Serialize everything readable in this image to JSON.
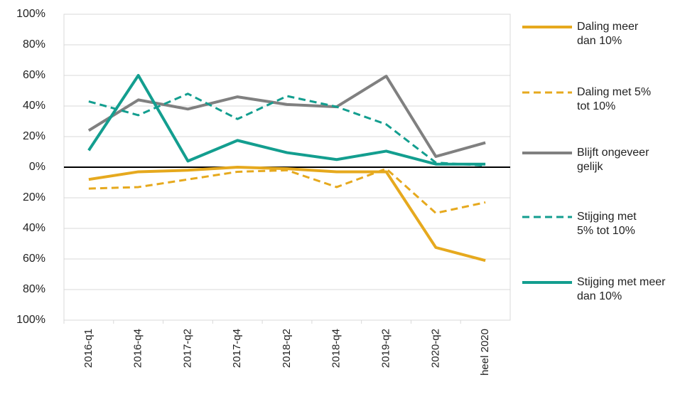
{
  "chart_data": {
    "type": "line",
    "categories": [
      "2016-q1",
      "2016-q4",
      "2017-q2",
      "2017-q4",
      "2018-q2",
      "2018-q4",
      "2019-q2",
      "2020-q2",
      "heel 2020"
    ],
    "ylim": [
      -100,
      100
    ],
    "yticks": [
      {
        "value": -100,
        "label": "100%"
      },
      {
        "value": -80,
        "label": "80%"
      },
      {
        "value": -60,
        "label": "60%"
      },
      {
        "value": -40,
        "label": "40%"
      },
      {
        "value": -20,
        "label": "20%"
      },
      {
        "value": 0,
        "label": "0%"
      },
      {
        "value": 20,
        "label": "20%"
      },
      {
        "value": 40,
        "label": "40%"
      },
      {
        "value": 60,
        "label": "60%"
      },
      {
        "value": 80,
        "label": "80%"
      },
      {
        "value": 100,
        "label": "100%"
      }
    ],
    "grid": true,
    "legend": "right",
    "series": [
      {
        "name": "Daling meer dan 10%",
        "color": "#e6a91e",
        "dash": "solid",
        "values": [
          -8,
          -3,
          -2,
          0,
          -1,
          -3,
          -3,
          -52.5,
          -61
        ]
      },
      {
        "name": "Daling met 5% tot 10%",
        "color": "#e6a91e",
        "dash": "dashed",
        "values": [
          -14,
          -13,
          -8,
          -3,
          -2,
          -13,
          -1,
          -30,
          -23
        ]
      },
      {
        "name": "Blijft ongeveer gelijk",
        "color": "#808080",
        "dash": "solid",
        "values": [
          24,
          44,
          38,
          46,
          41,
          39.5,
          59.5,
          7,
          16
        ]
      },
      {
        "name": "Stijging met 5% tot 10%",
        "color": "#139e8f",
        "dash": "dashed",
        "values": [
          43,
          34,
          48,
          31.5,
          46.5,
          39.5,
          28,
          3,
          1
        ]
      },
      {
        "name": "Stijging met meer dan 10%",
        "color": "#139e8f",
        "dash": "solid",
        "values": [
          11,
          60,
          4,
          17.5,
          9.5,
          5,
          10.5,
          2,
          2
        ]
      }
    ]
  }
}
